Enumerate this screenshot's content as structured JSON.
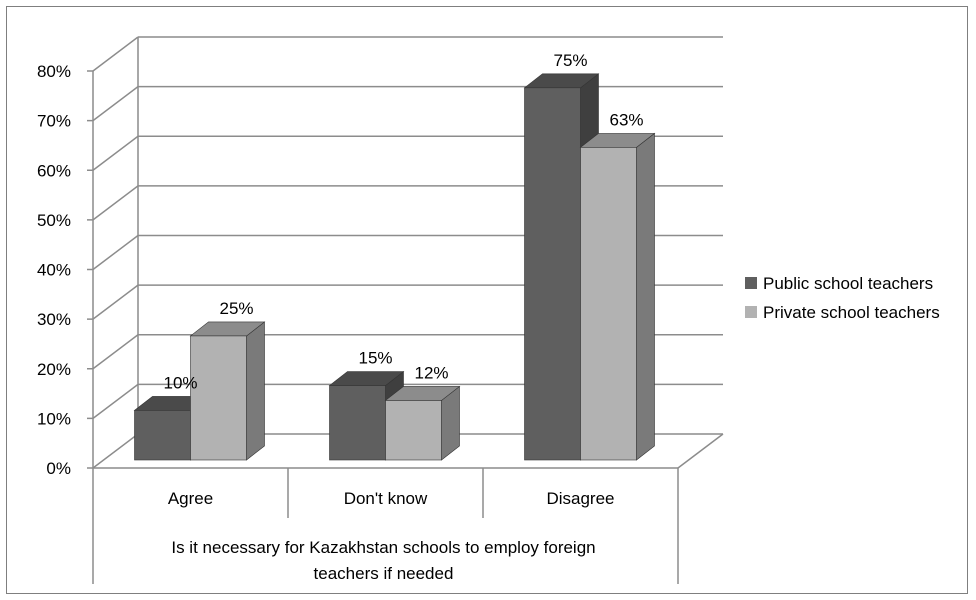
{
  "chart_data": {
    "type": "bar",
    "variant": "3d-clustered-column",
    "categories": [
      "Agree",
      "Don't know",
      "Disagree"
    ],
    "series": [
      {
        "name": "Public school teachers",
        "values": [
          10,
          15,
          75
        ],
        "labels": [
          "10%",
          "15%",
          "75%"
        ]
      },
      {
        "name": "Private school teachers",
        "values": [
          25,
          12,
          63
        ],
        "labels": [
          "25%",
          "12%",
          "63%"
        ]
      }
    ],
    "xlabel": "Is it necessary for Kazakhstan schools to employ foreign teachers if needed",
    "ylabel": "",
    "ylim": [
      0,
      80
    ],
    "yticks": [
      0,
      10,
      20,
      30,
      40,
      50,
      60,
      70,
      80
    ],
    "ytick_labels": [
      "0%",
      "10%",
      "20%",
      "30%",
      "40%",
      "50%",
      "60%",
      "70%",
      "80%"
    ],
    "grid": true,
    "legend_position": "right",
    "colors": {
      "series_front": [
        "#5f5f5f",
        "#b2b2b2"
      ],
      "series_side": [
        "#3f3f3f",
        "#7a7a7a"
      ],
      "series_top": [
        "#4a4a4a",
        "#8c8c8c"
      ],
      "grid": "#8c8c8c",
      "frame": "#7f7f7f"
    }
  }
}
